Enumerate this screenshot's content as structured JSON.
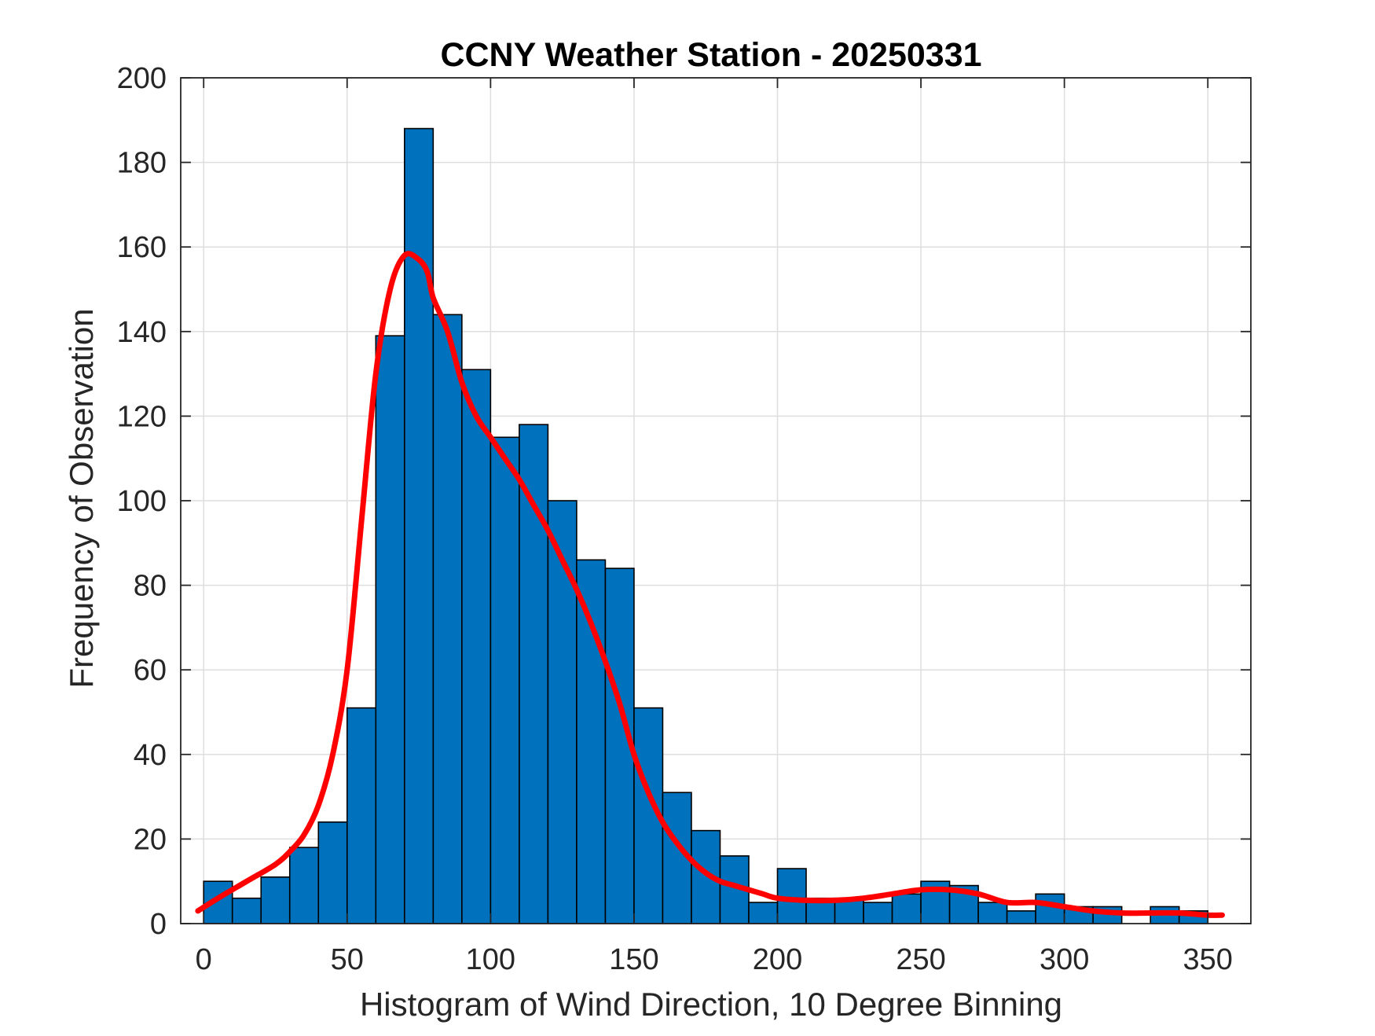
{
  "chart_data": {
    "type": "bar",
    "title": "CCNY Weather Station - 20250331",
    "xlabel": "Histogram of Wind Direction, 10 Degree Binning",
    "ylabel": "Frequency of Observation",
    "xlim": [
      -8,
      365
    ],
    "ylim": [
      0,
      200
    ],
    "xticks": [
      0,
      50,
      100,
      150,
      200,
      250,
      300,
      350
    ],
    "yticks": [
      0,
      20,
      40,
      60,
      80,
      100,
      120,
      140,
      160,
      180,
      200
    ],
    "grid": true,
    "bin_width": 10,
    "bin_starts": [
      0,
      10,
      20,
      30,
      40,
      50,
      60,
      70,
      80,
      90,
      100,
      110,
      120,
      130,
      140,
      150,
      160,
      170,
      180,
      190,
      200,
      210,
      220,
      230,
      240,
      250,
      260,
      270,
      280,
      290,
      300,
      310,
      320,
      330,
      340
    ],
    "values": [
      10,
      6,
      11,
      18,
      24,
      51,
      139,
      188,
      144,
      131,
      115,
      118,
      100,
      86,
      84,
      51,
      31,
      22,
      16,
      5,
      13,
      6,
      6,
      5,
      7,
      10,
      9,
      5,
      3,
      7,
      4,
      4,
      0,
      4,
      3
    ],
    "bar_color": "#0072BD",
    "edge_color": "#000000",
    "fit_color": "#FF0000",
    "fit_curve": {
      "x": [
        -2,
        5,
        15,
        25,
        30,
        35,
        40,
        45,
        50,
        55,
        60,
        65,
        70,
        75,
        78,
        80,
        85,
        90,
        95,
        100,
        105,
        110,
        115,
        120,
        125,
        130,
        135,
        140,
        145,
        150,
        155,
        160,
        165,
        170,
        175,
        180,
        185,
        190,
        195,
        200,
        210,
        220,
        230,
        240,
        250,
        260,
        270,
        280,
        290,
        300,
        310,
        320,
        330,
        340,
        350,
        355
      ],
      "y": [
        3,
        6,
        10,
        14,
        17,
        21,
        28,
        40,
        60,
        95,
        130,
        150,
        158,
        157,
        154,
        148,
        140,
        128,
        120,
        115,
        110,
        105,
        99,
        93,
        86,
        79,
        71,
        62,
        52,
        40,
        31,
        24,
        19,
        15,
        12,
        10,
        9,
        8,
        7,
        6,
        5.5,
        5.5,
        6,
        7,
        8,
        8,
        7,
        5,
        5,
        4,
        3,
        2.5,
        2.5,
        2.5,
        2,
        2
      ]
    }
  }
}
